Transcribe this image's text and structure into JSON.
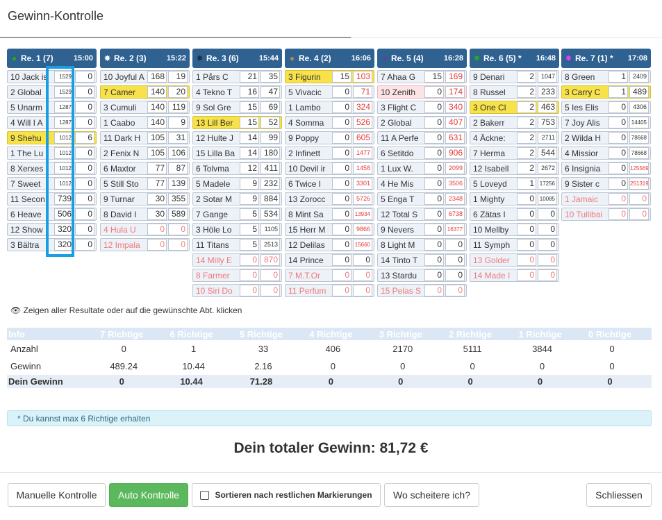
{
  "dialog": {
    "title": "Gewinn-Kontrolle"
  },
  "races": [
    {
      "name": "Re. 1 (7)",
      "time": "15:00",
      "star_color": "#22aa22",
      "star_icon": "●",
      "rows": [
        {
          "name": "10 Jack is",
          "v1": "1529",
          "v2": "0",
          "s": ""
        },
        {
          "name": "2 Global",
          "v1": "1529",
          "v2": "0",
          "s": ""
        },
        {
          "name": "5 Unarm",
          "v1": "1287",
          "v2": "0",
          "s": ""
        },
        {
          "name": "4 Will I A",
          "v1": "1287",
          "v2": "0",
          "s": ""
        },
        {
          "name": "9 Shehu",
          "v1": "1012",
          "v2": "6",
          "s": "sel"
        },
        {
          "name": "1 The Lu",
          "v1": "1012",
          "v2": "0",
          "s": ""
        },
        {
          "name": "8 Xerxes",
          "v1": "1012",
          "v2": "0",
          "s": ""
        },
        {
          "name": "7 Sweet",
          "v1": "1012",
          "v2": "0",
          "s": ""
        },
        {
          "name": "11 Secon",
          "v1": "739",
          "v2": "0",
          "s": ""
        },
        {
          "name": "6 Heave",
          "v1": "506",
          "v2": "0",
          "s": ""
        },
        {
          "name": "12 Show",
          "v1": "320",
          "v2": "0",
          "s": ""
        },
        {
          "name": "3 Bältra",
          "v1": "320",
          "v2": "0",
          "s": ""
        }
      ]
    },
    {
      "name": "Re. 2 (3)",
      "time": "15:22",
      "star_color": "#ffffff",
      "star_icon": "✸",
      "rows": [
        {
          "name": "10 Joyful A",
          "v1": "168",
          "v2": "19",
          "s": ""
        },
        {
          "name": "7 Camer",
          "v1": "140",
          "v2": "20",
          "s": "sel"
        },
        {
          "name": "3 Cumuli",
          "v1": "140",
          "v2": "119",
          "s": ""
        },
        {
          "name": "1 Caabo",
          "v1": "140",
          "v2": "9",
          "s": ""
        },
        {
          "name": "11 Dark H",
          "v1": "105",
          "v2": "31",
          "s": ""
        },
        {
          "name": "2 Fenix N",
          "v1": "105",
          "v2": "106",
          "s": ""
        },
        {
          "name": "6 Maxtor",
          "v1": "77",
          "v2": "87",
          "s": ""
        },
        {
          "name": "5 Still Sto",
          "v1": "77",
          "v2": "139",
          "s": ""
        },
        {
          "name": "9 Turnar",
          "v1": "30",
          "v2": "355",
          "s": ""
        },
        {
          "name": "8 David I",
          "v1": "30",
          "v2": "589",
          "s": ""
        },
        {
          "name": "4 Hula U",
          "v1": "0",
          "v2": "0",
          "s": "scratch"
        },
        {
          "name": "12 Impala",
          "v1": "0",
          "v2": "0",
          "s": "scratch"
        }
      ]
    },
    {
      "name": "Re. 3 (6)",
      "time": "15:44",
      "star_color": "#1b2f44",
      "star_icon": "✸",
      "rows": [
        {
          "name": "1 Pårs C",
          "v1": "21",
          "v2": "35",
          "s": ""
        },
        {
          "name": "4 Tekno T",
          "v1": "16",
          "v2": "47",
          "s": ""
        },
        {
          "name": "9 Sol Gre",
          "v1": "15",
          "v2": "69",
          "s": ""
        },
        {
          "name": "13 Lill Ber",
          "v1": "15",
          "v2": "52",
          "s": "sel"
        },
        {
          "name": "12 Hulte J",
          "v1": "14",
          "v2": "99",
          "s": ""
        },
        {
          "name": "15 Lilla Ba",
          "v1": "14",
          "v2": "180",
          "s": ""
        },
        {
          "name": "6 Tolvma",
          "v1": "12",
          "v2": "411",
          "s": ""
        },
        {
          "name": "5 Madele",
          "v1": "9",
          "v2": "232",
          "s": ""
        },
        {
          "name": "2 Sotar M",
          "v1": "9",
          "v2": "884",
          "s": ""
        },
        {
          "name": "7 Gange",
          "v1": "5",
          "v2": "534",
          "s": ""
        },
        {
          "name": "3 Höle Lo",
          "v1": "5",
          "v2": "1105",
          "s": ""
        },
        {
          "name": "11 Titans",
          "v1": "5",
          "v2": "2513",
          "s": ""
        },
        {
          "name": "14 Milly E",
          "v1": "0",
          "v2": "870",
          "s": "scratch"
        },
        {
          "name": "8 Farmer",
          "v1": "0",
          "v2": "0",
          "s": "scratch"
        },
        {
          "name": "10 Siri Do",
          "v1": "0",
          "v2": "0",
          "s": "scratch"
        }
      ]
    },
    {
      "name": "Re. 4 (2)",
      "time": "16:06",
      "star_color": "#b08a50",
      "star_icon": "●",
      "rows": [
        {
          "name": "3 Figurin",
          "v1": "15",
          "v2": "103",
          "s": "sel"
        },
        {
          "name": "5 Vivacic",
          "v1": "0",
          "v2": "71",
          "s": ""
        },
        {
          "name": "1 Lambo",
          "v1": "0",
          "v2": "324",
          "s": ""
        },
        {
          "name": "4 Somma",
          "v1": "0",
          "v2": "526",
          "s": ""
        },
        {
          "name": "9 Poppy",
          "v1": "0",
          "v2": "605",
          "s": ""
        },
        {
          "name": "2 Infinett",
          "v1": "0",
          "v2": "1477",
          "s": ""
        },
        {
          "name": "10 Devil ir",
          "v1": "0",
          "v2": "1458",
          "s": ""
        },
        {
          "name": "6 Twice I",
          "v1": "0",
          "v2": "3301",
          "s": ""
        },
        {
          "name": "13 Zorocc",
          "v1": "0",
          "v2": "5726",
          "s": ""
        },
        {
          "name": "8 Mint Sa",
          "v1": "0",
          "v2": "13934",
          "s": ""
        },
        {
          "name": "15 Herr M",
          "v1": "0",
          "v2": "9866",
          "s": ""
        },
        {
          "name": "12 Delilas",
          "v1": "0",
          "v2": "15660",
          "s": ""
        },
        {
          "name": "14 Prince",
          "v1": "0",
          "v2": "0",
          "s": ""
        },
        {
          "name": "7 M.T.Or",
          "v1": "0",
          "v2": "0",
          "s": "scratch"
        },
        {
          "name": "11 Perfum",
          "v1": "0",
          "v2": "0",
          "s": "scratch"
        }
      ]
    },
    {
      "name": "Re. 5 (4)",
      "time": "16:28",
      "star_color": "#6a3aa0",
      "star_icon": "●",
      "rows": [
        {
          "name": "7 Ahaa G",
          "v1": "15",
          "v2": "169",
          "s": ""
        },
        {
          "name": "10 Zenith",
          "v1": "0",
          "v2": "174",
          "s": "alt"
        },
        {
          "name": "3 Flight C",
          "v1": "0",
          "v2": "340",
          "s": ""
        },
        {
          "name": "2 Global",
          "v1": "0",
          "v2": "407",
          "s": ""
        },
        {
          "name": "11 A Perfe",
          "v1": "0",
          "v2": "631",
          "s": ""
        },
        {
          "name": "6 Setitdo",
          "v1": "0",
          "v2": "906",
          "s": ""
        },
        {
          "name": "1 Lux W.",
          "v1": "0",
          "v2": "2099",
          "s": ""
        },
        {
          "name": "4 He Mis",
          "v1": "0",
          "v2": "3506",
          "s": ""
        },
        {
          "name": "5 Enga T",
          "v1": "0",
          "v2": "2348",
          "s": ""
        },
        {
          "name": "12 Total S",
          "v1": "0",
          "v2": "6738",
          "s": ""
        },
        {
          "name": "9 Nevers",
          "v1": "0",
          "v2": "16377",
          "s": ""
        },
        {
          "name": "8 Light M",
          "v1": "0",
          "v2": "0",
          "s": ""
        },
        {
          "name": "14 Tinto T",
          "v1": "0",
          "v2": "0",
          "s": ""
        },
        {
          "name": "13 Stardu",
          "v1": "0",
          "v2": "0",
          "s": ""
        },
        {
          "name": "15 Pelas S",
          "v1": "0",
          "v2": "0",
          "s": "scratch"
        }
      ]
    },
    {
      "name": "Re. 6 (5) *",
      "time": "16:48",
      "star_color": "#22aa22",
      "star_icon": "✸",
      "rows": [
        {
          "name": "9 Denari",
          "v1": "2",
          "v2": "1047",
          "s": ""
        },
        {
          "name": "8 Russel",
          "v1": "2",
          "v2": "233",
          "s": ""
        },
        {
          "name": "3 One Cl",
          "v1": "2",
          "v2": "463",
          "s": "sel"
        },
        {
          "name": "2 Bakerr",
          "v1": "2",
          "v2": "753",
          "s": ""
        },
        {
          "name": "4 Äckne:",
          "v1": "2",
          "v2": "2711",
          "s": ""
        },
        {
          "name": "7 Herma",
          "v1": "2",
          "v2": "544",
          "s": ""
        },
        {
          "name": "12 Isabell",
          "v1": "2",
          "v2": "2672",
          "s": ""
        },
        {
          "name": "5 Loveyd",
          "v1": "1",
          "v2": "17256",
          "s": ""
        },
        {
          "name": "1 Mighty",
          "v1": "0",
          "v2": "10085",
          "s": ""
        },
        {
          "name": "6 Zätas I",
          "v1": "0",
          "v2": "0",
          "s": ""
        },
        {
          "name": "10 Mellby",
          "v1": "0",
          "v2": "0",
          "s": ""
        },
        {
          "name": "11 Symph",
          "v1": "0",
          "v2": "0",
          "s": ""
        },
        {
          "name": "13 Golder",
          "v1": "0",
          "v2": "0",
          "s": "scratch"
        },
        {
          "name": "14 Made I",
          "v1": "0",
          "v2": "0",
          "s": "scratch"
        }
      ]
    },
    {
      "name": "Re. 7 (1) *",
      "time": "17:08",
      "star_color": "#e040fb",
      "star_icon": "✸",
      "rows": [
        {
          "name": "8 Green",
          "v1": "1",
          "v2": "2409",
          "s": ""
        },
        {
          "name": "3 Carry C",
          "v1": "1",
          "v2": "489",
          "s": "sel"
        },
        {
          "name": "5 Ies Elis",
          "v1": "0",
          "v2": "4306",
          "s": ""
        },
        {
          "name": "7 Joy Alis",
          "v1": "0",
          "v2": "14405",
          "s": ""
        },
        {
          "name": "2 Wilda H",
          "v1": "0",
          "v2": "78668",
          "s": ""
        },
        {
          "name": "4 Missior",
          "v1": "0",
          "v2": "78668",
          "s": ""
        },
        {
          "name": "6 Insignia",
          "v1": "0",
          "v2": "125569",
          "s": ""
        },
        {
          "name": "9 Sister c",
          "v1": "0",
          "v2": "251319",
          "s": ""
        },
        {
          "name": "1 Jamaic",
          "v1": "0",
          "v2": "0",
          "s": "scratch"
        },
        {
          "name": "10 Tullibai",
          "v1": "0",
          "v2": "0",
          "s": "scratch"
        }
      ]
    }
  ],
  "info_line": "Zeigen aller Resultate oder auf die gewünschte Abt. klicken",
  "results": {
    "headers": [
      "Info",
      "7 Richtige",
      "6 Richtige",
      "5 Richtige",
      "4 Richtige",
      "3 Richtige",
      "2 Richtige",
      "1 Richtige",
      "0 Richtige"
    ],
    "anzahl": {
      "label": "Anzahl",
      "values": [
        "0",
        "1",
        "33",
        "406",
        "2170",
        "5111",
        "3844",
        "0"
      ]
    },
    "gewinn": {
      "label": "Gewinn",
      "values": [
        "489.24",
        "10.44",
        "2.16",
        "0",
        "0",
        "0",
        "0",
        "0"
      ]
    },
    "dein": {
      "label": "Dein Gewinn",
      "values": [
        "0",
        "10.44",
        "71.28",
        "0",
        "0",
        "0",
        "0",
        "0"
      ]
    }
  },
  "note": "* Du kannst max 6 Richtige erhalten",
  "total": "Dein totaler Gewinn: 81,72 €",
  "buttons": {
    "manual": "Manuelle Kontrolle",
    "auto": "Auto Kontrolle",
    "sort": "Sortieren nach restlichen Markierungen",
    "fail": "Wo scheitere ich?",
    "close": "Schliessen"
  }
}
